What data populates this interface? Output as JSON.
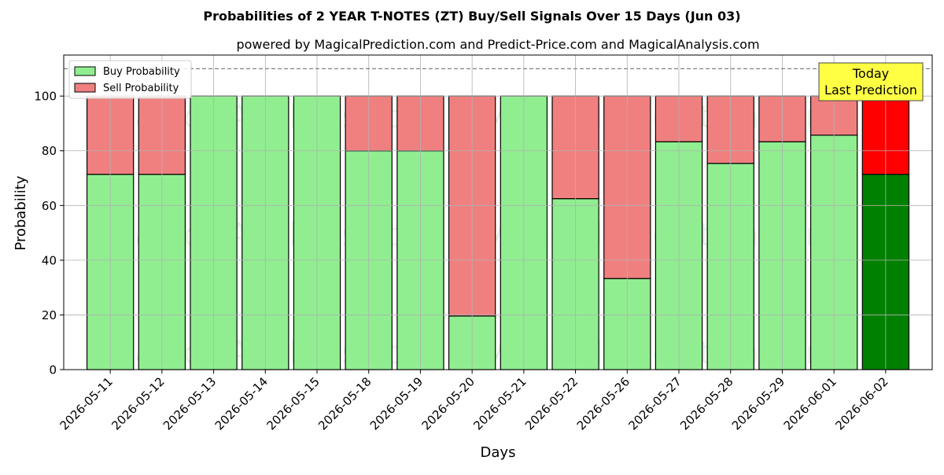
{
  "chart_data": {
    "type": "bar",
    "title": "Probabilities of 2 YEAR T-NOTES (ZT) Buy/Sell Signals Over 15 Days (Jun 03)",
    "subtitle": "powered by MagicalPrediction.com and Predict-Price.com and MagicalAnalysis.com",
    "xlabel": "Days",
    "ylabel": "Probability",
    "ylim": [
      0,
      115
    ],
    "yticks": [
      0,
      20,
      40,
      60,
      80,
      100
    ],
    "reference_line": 110,
    "grid": true,
    "legend_position": "top-left",
    "categories": [
      "2026-05-11",
      "2026-05-12",
      "2026-05-13",
      "2026-05-14",
      "2026-05-15",
      "2026-05-18",
      "2026-05-19",
      "2026-05-20",
      "2026-05-21",
      "2026-05-22",
      "2026-05-26",
      "2026-05-27",
      "2026-05-28",
      "2026-05-29",
      "2026-06-01",
      "2026-06-02"
    ],
    "series": [
      {
        "name": "Buy Probability",
        "color": "#90ee90",
        "values": [
          71.4,
          71.4,
          100,
          100,
          100,
          80,
          80,
          19.6,
          100,
          62.5,
          33.3,
          83.3,
          75.4,
          83.3,
          85.7,
          71.4
        ]
      },
      {
        "name": "Sell Probability",
        "color": "#f08080",
        "values": [
          28.6,
          28.6,
          0,
          0,
          0,
          20,
          20,
          80.4,
          0,
          37.5,
          66.7,
          16.7,
          24.6,
          16.7,
          14.3,
          28.6
        ]
      }
    ],
    "highlight": {
      "index": 15,
      "buy_color": "#008000",
      "sell_color": "#ff0000"
    },
    "annotation": {
      "lines": [
        "Today",
        "Last Prediction"
      ],
      "color": "#ffff44"
    },
    "watermarks": [
      "MagicalAnalysis.com",
      "MagicalPrediction.com"
    ]
  }
}
